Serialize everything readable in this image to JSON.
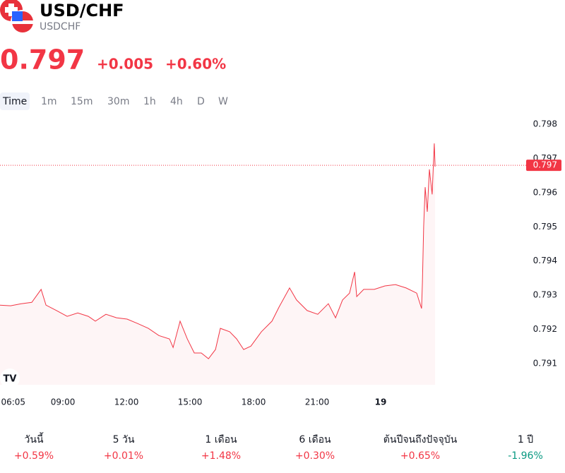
{
  "header": {
    "title": "USD/CHF",
    "symbol": "USDCHF"
  },
  "quote": {
    "price": "0.797",
    "change": "+0.005",
    "change_pct": "+0.60%"
  },
  "intervals": [
    "Time",
    "1m",
    "15m",
    "30m",
    "1h",
    "4h",
    "D",
    "W"
  ],
  "chart_data": {
    "type": "line",
    "color": "#f23645",
    "x": [
      6.03,
      6.53,
      7.03,
      7.53,
      7.97,
      8.2,
      8.7,
      9.2,
      9.7,
      10.2,
      10.53,
      11.03,
      11.53,
      12.03,
      12.53,
      13.03,
      13.53,
      14.03,
      14.2,
      14.53,
      14.87,
      15.2,
      15.53,
      15.87,
      16.2,
      16.43,
      16.87,
      17.2,
      17.53,
      17.87,
      18.37,
      18.87,
      19.2,
      19.7,
      20.03,
      20.53,
      21.03,
      21.53,
      21.87,
      22.2,
      22.53,
      22.77,
      22.87,
      23.2,
      23.7,
      24.2,
      24.7,
      25.2,
      25.7,
      25.93,
      25.97,
      26.03,
      26.1,
      26.2,
      26.3,
      26.43,
      26.53,
      26.57
    ],
    "values": [
      0.79271,
      0.79269,
      0.79275,
      0.79279,
      0.79317,
      0.79271,
      0.79255,
      0.79238,
      0.79248,
      0.79238,
      0.79224,
      0.79244,
      0.79234,
      0.7923,
      0.79217,
      0.79203,
      0.79182,
      0.79172,
      0.79147,
      0.79224,
      0.79172,
      0.79131,
      0.79131,
      0.79114,
      0.79141,
      0.79203,
      0.79193,
      0.79172,
      0.79141,
      0.79151,
      0.79193,
      0.79224,
      0.79265,
      0.79321,
      0.79286,
      0.79255,
      0.79244,
      0.79275,
      0.79234,
      0.79286,
      0.79306,
      0.79368,
      0.79296,
      0.79317,
      0.79317,
      0.79327,
      0.79331,
      0.79321,
      0.79306,
      0.79261,
      0.79337,
      0.79502,
      0.79616,
      0.79544,
      0.79668,
      0.79595,
      0.79744,
      0.79676
    ],
    "xlim": [
      6.03,
      30.7
    ],
    "xticks": [
      {
        "value": 6.08,
        "label": "06:05"
      },
      {
        "value": 9,
        "label": "09:00"
      },
      {
        "value": 12,
        "label": "12:00"
      },
      {
        "value": 15,
        "label": "15:00"
      },
      {
        "value": 18,
        "label": "18:00"
      },
      {
        "value": 21,
        "label": "21:00"
      },
      {
        "value": 24,
        "label": "19"
      }
    ],
    "ylim": [
      0.79038,
      0.79833
    ],
    "yticks": [
      0.791,
      0.792,
      0.793,
      0.794,
      0.795,
      0.796,
      0.797,
      0.798
    ],
    "last_price": {
      "value": 0.7968,
      "label": "0.797"
    }
  },
  "performance": [
    {
      "label": "วันนี้",
      "value": "+0.59%",
      "color": "#f23645"
    },
    {
      "label": "5 วัน",
      "value": "+0.01%",
      "color": "#f23645"
    },
    {
      "label": "1 เดือน",
      "value": "+1.48%",
      "color": "#f23645"
    },
    {
      "label": "6 เดือน",
      "value": "+0.30%",
      "color": "#f23645"
    },
    {
      "label": "ต้นปีจนถึงปัจจุบัน",
      "value": "+0.65%",
      "color": "#f23645"
    },
    {
      "label": "1 ปี",
      "value": "-1.96%",
      "color": "#089981"
    }
  ]
}
